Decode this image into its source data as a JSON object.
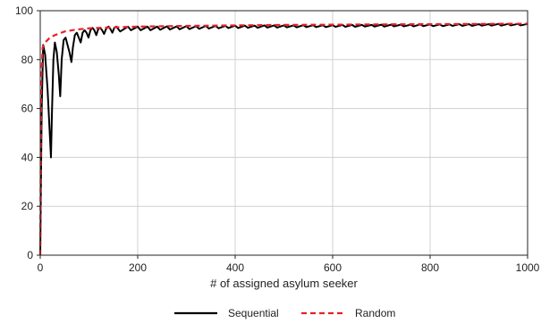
{
  "chart_data": {
    "type": "line",
    "title": "",
    "xlabel": "# of assigned asylum seeker",
    "ylabel": "",
    "xlim": [
      0,
      1000
    ],
    "ylim": [
      0,
      100
    ],
    "xticks": [
      0,
      200,
      400,
      600,
      800,
      1000
    ],
    "yticks": [
      0,
      20,
      40,
      60,
      80,
      100
    ],
    "grid": true,
    "legend_position": "bottom-center",
    "series": [
      {
        "name": "Sequential",
        "color": "#000000",
        "style": "solid",
        "points": [
          [
            0,
            0
          ],
          [
            3,
            60
          ],
          [
            6,
            86
          ],
          [
            10,
            82
          ],
          [
            15,
            68
          ],
          [
            19,
            52
          ],
          [
            22,
            40
          ],
          [
            24,
            58
          ],
          [
            27,
            80
          ],
          [
            30,
            87
          ],
          [
            34,
            83
          ],
          [
            38,
            74
          ],
          [
            41,
            65
          ],
          [
            44,
            80
          ],
          [
            48,
            88
          ],
          [
            52,
            89
          ],
          [
            56,
            86
          ],
          [
            60,
            83
          ],
          [
            64,
            79
          ],
          [
            67,
            85
          ],
          [
            71,
            90
          ],
          [
            75,
            91
          ],
          [
            79,
            89
          ],
          [
            83,
            87
          ],
          [
            87,
            91
          ],
          [
            91,
            92
          ],
          [
            95,
            91
          ],
          [
            99,
            89
          ],
          [
            103,
            92
          ],
          [
            107,
            93
          ],
          [
            111,
            92
          ],
          [
            115,
            90
          ],
          [
            119,
            92.5
          ],
          [
            123,
            93
          ],
          [
            127,
            92
          ],
          [
            131,
            90.5
          ],
          [
            136,
            93
          ],
          [
            140,
            93.5
          ],
          [
            144,
            92.5
          ],
          [
            148,
            91
          ],
          [
            152,
            93
          ],
          [
            156,
            93.5
          ],
          [
            160,
            92.5
          ],
          [
            164,
            91.5
          ],
          [
            180,
            93.5
          ],
          [
            186,
            92
          ],
          [
            200,
            93.5
          ],
          [
            206,
            92
          ],
          [
            220,
            93.5
          ],
          [
            226,
            92
          ],
          [
            240,
            93.5
          ],
          [
            246,
            92.2
          ],
          [
            260,
            93.6
          ],
          [
            266,
            92.3
          ],
          [
            280,
            93.6
          ],
          [
            286,
            92.4
          ],
          [
            300,
            93.7
          ],
          [
            306,
            92.5
          ],
          [
            320,
            93.7
          ],
          [
            326,
            92.6
          ],
          [
            340,
            93.8
          ],
          [
            346,
            92.7
          ],
          [
            360,
            93.8
          ],
          [
            366,
            92.8
          ],
          [
            380,
            93.8
          ],
          [
            386,
            92.9
          ],
          [
            400,
            93.9
          ],
          [
            406,
            92.9
          ],
          [
            420,
            93.9
          ],
          [
            426,
            93
          ],
          [
            440,
            93.9
          ],
          [
            446,
            93
          ],
          [
            460,
            94
          ],
          [
            466,
            93.1
          ],
          [
            480,
            94
          ],
          [
            486,
            93.1
          ],
          [
            500,
            94
          ],
          [
            506,
            93.2
          ],
          [
            520,
            94
          ],
          [
            526,
            93.2
          ],
          [
            540,
            94.1
          ],
          [
            546,
            93.3
          ],
          [
            560,
            94.1
          ],
          [
            566,
            93.3
          ],
          [
            580,
            94.1
          ],
          [
            586,
            93.3
          ],
          [
            600,
            94.1
          ],
          [
            606,
            93.4
          ],
          [
            620,
            94.2
          ],
          [
            626,
            93.4
          ],
          [
            640,
            94.2
          ],
          [
            646,
            93.4
          ],
          [
            660,
            94.2
          ],
          [
            666,
            93.5
          ],
          [
            680,
            94.2
          ],
          [
            686,
            93.5
          ],
          [
            700,
            94.3
          ],
          [
            706,
            93.5
          ],
          [
            720,
            94.3
          ],
          [
            726,
            93.6
          ],
          [
            740,
            94.3
          ],
          [
            746,
            93.6
          ],
          [
            760,
            94.3
          ],
          [
            766,
            93.6
          ],
          [
            780,
            94.4
          ],
          [
            786,
            93.7
          ],
          [
            800,
            94.4
          ],
          [
            806,
            93.7
          ],
          [
            820,
            94.4
          ],
          [
            826,
            93.7
          ],
          [
            840,
            94.4
          ],
          [
            846,
            93.8
          ],
          [
            860,
            94.5
          ],
          [
            866,
            93.8
          ],
          [
            880,
            94.5
          ],
          [
            886,
            93.8
          ],
          [
            900,
            94.5
          ],
          [
            906,
            93.9
          ],
          [
            920,
            94.5
          ],
          [
            926,
            93.9
          ],
          [
            940,
            94.6
          ],
          [
            946,
            93.9
          ],
          [
            960,
            94.6
          ],
          [
            966,
            94
          ],
          [
            980,
            94.6
          ],
          [
            986,
            94
          ],
          [
            1000,
            94.6
          ]
        ]
      },
      {
        "name": "Random",
        "color": "#e8202a",
        "style": "dashed",
        "points": [
          [
            0,
            0
          ],
          [
            2,
            72
          ],
          [
            5,
            85
          ],
          [
            10,
            87
          ],
          [
            20,
            89
          ],
          [
            30,
            90
          ],
          [
            50,
            91.5
          ],
          [
            75,
            92.3
          ],
          [
            100,
            92.8
          ],
          [
            150,
            93.2
          ],
          [
            200,
            93.5
          ],
          [
            300,
            93.8
          ],
          [
            400,
            94
          ],
          [
            500,
            94.2
          ],
          [
            600,
            94.3
          ],
          [
            700,
            94.4
          ],
          [
            800,
            94.5
          ],
          [
            900,
            94.6
          ],
          [
            1000,
            94.7
          ]
        ]
      }
    ]
  }
}
